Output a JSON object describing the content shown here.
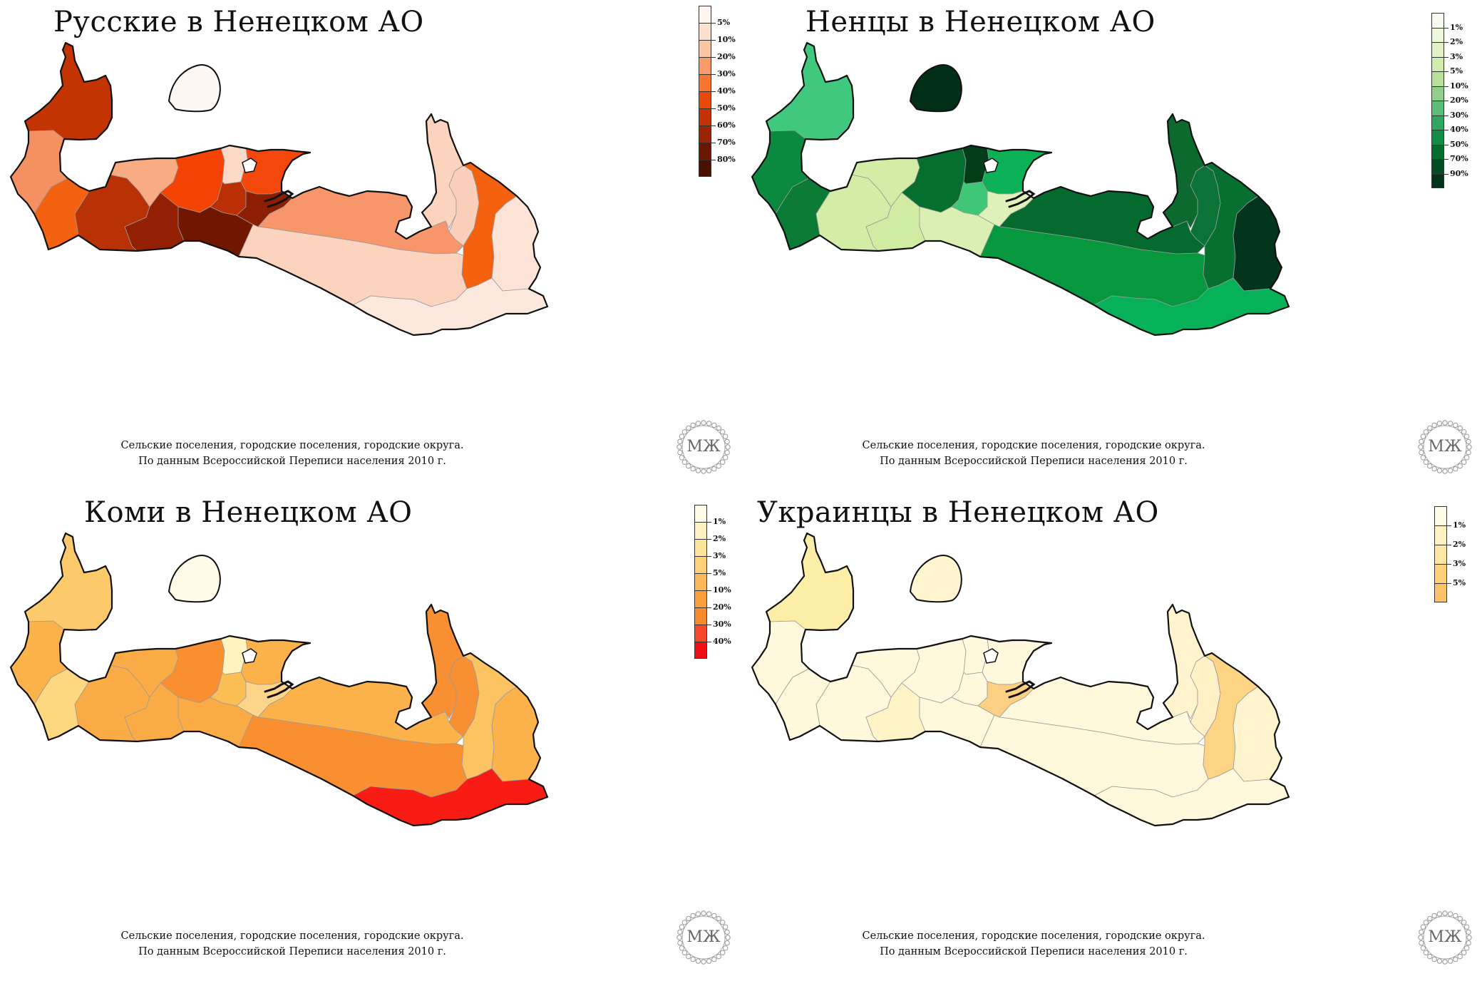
{
  "panels": [
    {
      "title": "Русские в Ненецком АО",
      "legend": [
        "5%",
        "10%",
        "20%",
        "30%",
        "40%",
        "50%",
        "60%",
        "70%",
        "80%"
      ],
      "legend_colors": [
        "#fff5ee",
        "#fde0cf",
        "#fcc4a4",
        "#fb9a6a",
        "#f8742f",
        "#e84a06",
        "#c23303",
        "#9b2503",
        "#6a1701",
        "#4a1000"
      ],
      "caption_line1": "Сельские поселения, городские поселения, городские округа.",
      "caption_line2": "По данным Всероссийской Переписи населения 2010 г.",
      "seal_text": "МЖ",
      "region_colors": {
        "island": "#fdf8f3",
        "nw": "#c43302",
        "west": "#f59062",
        "w2": "#f36210",
        "w3": "#b93205",
        "c1": "#f9ab82",
        "c2": "#932003",
        "c3": "#f44304",
        "c4": "#701601",
        "c5": "#fcd8c6",
        "c6": "#bc2f04",
        "c7": "#f4470b",
        "c8": "#8c1e03",
        "mid": "#f7956b",
        "south": "#fcd3bf",
        "ne": "#fcd3bd",
        "e1": "#fbcfba",
        "e2": "#f4620f",
        "e3": "#fde3d6",
        "se": "#fde8dd"
      }
    },
    {
      "title": "Ненцы в Ненецком АО",
      "legend": [
        "1%",
        "2%",
        "3%",
        "5%",
        "10%",
        "20%",
        "30%",
        "40%",
        "50%",
        "70%",
        "90%"
      ],
      "legend_colors": [
        "#f7fbf0",
        "#eff8dc",
        "#e2f2c4",
        "#d0ebab",
        "#b7e19b",
        "#8fd08c",
        "#5cbd78",
        "#2ea85e",
        "#138c45",
        "#056d30",
        "#024d22",
        "#01331a"
      ],
      "caption_line1": "Сельские поселения, городские поселения, городские округа.",
      "caption_line2": "По данным Всероссийской Переписи населения 2010 г.",
      "seal_text": "МЖ",
      "region_colors": {
        "island": "#012e16",
        "nw": "#40c97e",
        "west": "#0b8a3f",
        "w2": "#0a7a34",
        "w3": "#d3eda6",
        "c1": "#d3eda6",
        "c2": "#d0eba2",
        "c3": "#066e2f",
        "c4": "#d9f0b2",
        "c5": "#023d1a",
        "c6": "#3ec777",
        "c7": "#0ab157",
        "c8": "#ddf1b8",
        "mid": "#056a2d",
        "south": "#06973f",
        "ne": "#0c6a2f",
        "e1": "#0a7335",
        "e2": "#05702f",
        "e3": "#02351b",
        "se": "#06b15a"
      }
    },
    {
      "title": "Коми в Ненецком АО",
      "legend": [
        "1%",
        "2%",
        "3%",
        "5%",
        "10%",
        "20%",
        "30%",
        "40%"
      ],
      "legend_colors": [
        "#fffbe6",
        "#fff2c2",
        "#fde49b",
        "#fdd17a",
        "#fcb95a",
        "#fb9e3b",
        "#f98a2c",
        "#f7472d",
        "#ee0e14"
      ],
      "caption_line1": "Сельские поселения, городские поселения, городские округа.",
      "caption_line2": "По данным Всероссийской Переписи населения 2010 г.",
      "seal_text": "МЖ",
      "region_colors": {
        "island": "#fffbe8",
        "nw": "#fcca6a",
        "west": "#fbb24b",
        "w2": "#fdd881",
        "w3": "#fbab45",
        "c1": "#fbab45",
        "c2": "#fbab45",
        "c3": "#f98f31",
        "c4": "#fbab45",
        "c5": "#fff3c0",
        "c6": "#fbbf55",
        "c7": "#fbb24b",
        "c8": "#fcd48a",
        "mid": "#fbb24b",
        "south": "#f98f31",
        "ne": "#f88f32",
        "e1": "#f88f32",
        "e2": "#fcc461",
        "e3": "#fbb24b",
        "se": "#f81c14"
      }
    },
    {
      "title": "Украинцы в Ненецком АО",
      "legend": [
        "1%",
        "2%",
        "3%",
        "5%"
      ],
      "legend_colors": [
        "#fffbe6",
        "#fff3c6",
        "#fde7a2",
        "#fdd27a",
        "#fcc266"
      ],
      "caption_line1": "Сельские поселения, городские поселения, городские округа.",
      "caption_line2": "По данным Всероссийской Переписи населения 2010 г.",
      "seal_text": "МЖ",
      "region_colors": {
        "island": "#fff5d0",
        "nw": "#fdeea7",
        "west": "#fff8dc",
        "w2": "#fff8dc",
        "w3": "#fff8dc",
        "c1": "#fff8dc",
        "c2": "#fff3c8",
        "c3": "#fff8dc",
        "c4": "#fff8dc",
        "c5": "#fff8dc",
        "c6": "#fff8dc",
        "c7": "#fff8dc",
        "c8": "#fcd083",
        "mid": "#fff8dc",
        "south": "#fff8dc",
        "ne": "#fff4cd",
        "e1": "#fff0c6",
        "e2": "#fcd483",
        "e3": "#fff4cd",
        "se": "#fff8dc"
      }
    }
  ]
}
